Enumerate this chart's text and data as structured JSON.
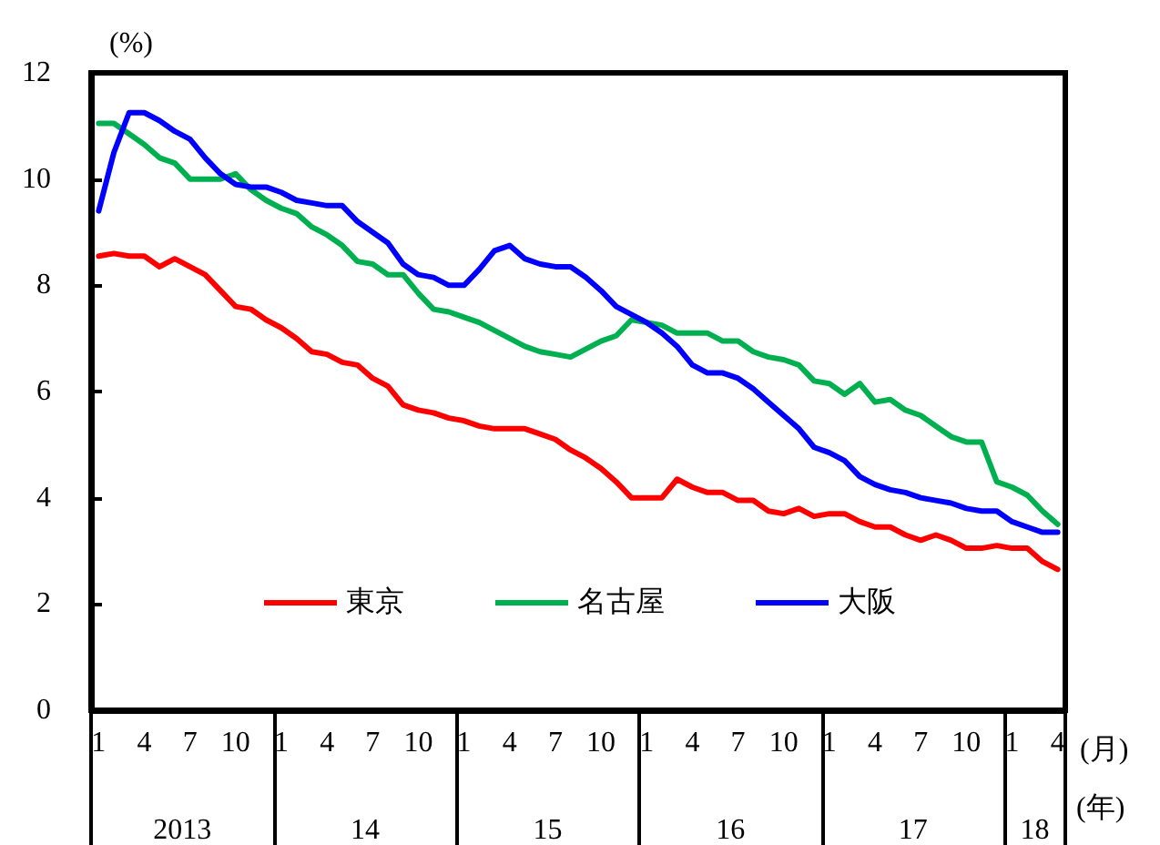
{
  "chart_data": {
    "type": "line",
    "ylabel": "(%)",
    "xlabel": "(月)",
    "categories": [
      "1",
      null,
      null,
      "4",
      null,
      null,
      "7",
      null,
      null,
      "10",
      null,
      null,
      "1",
      null,
      null,
      "4",
      null,
      null,
      "7",
      null,
      null,
      "10",
      null,
      null,
      "1",
      null,
      null,
      "4",
      null,
      null,
      "7",
      null,
      null,
      "10",
      null,
      null,
      "1",
      null,
      null,
      "4",
      null,
      null,
      "7",
      null,
      null,
      "10",
      null,
      null,
      "1",
      null,
      null,
      "4",
      null,
      null,
      "7",
      null,
      null,
      "10",
      null,
      null,
      "1",
      null,
      null,
      "4"
    ],
    "annotations": [
      "2013",
      "14",
      "15",
      "16",
      "17",
      "18",
      "(年)"
    ],
    "ylim": [
      0,
      12
    ],
    "yticks": [
      0,
      2,
      4,
      6,
      8,
      10,
      12
    ],
    "grid": false,
    "legend": "bottom",
    "marker": "none",
    "line_style": "solid",
    "series": [
      {
        "name": "東京",
        "color": "#ff0000",
        "values": [
          8.55,
          8.6,
          8.55,
          8.55,
          8.35,
          8.5,
          8.35,
          8.2,
          7.9,
          7.6,
          7.55,
          7.35,
          7.2,
          7.0,
          6.75,
          6.7,
          6.55,
          6.5,
          6.25,
          6.1,
          5.75,
          5.65,
          5.6,
          5.5,
          5.45,
          5.35,
          5.3,
          5.3,
          5.3,
          5.2,
          5.1,
          4.9,
          4.75,
          4.55,
          4.3,
          4.0,
          4.0,
          4.0,
          4.35,
          4.2,
          4.1,
          4.1,
          3.95,
          3.95,
          3.75,
          3.7,
          3.8,
          3.65,
          3.7,
          3.7,
          3.55,
          3.45,
          3.45,
          3.3,
          3.2,
          3.3,
          3.2,
          3.05,
          3.05,
          3.1,
          3.05,
          3.05,
          2.8,
          2.65
        ]
      },
      {
        "name": "名古屋",
        "color": "#00b050",
        "values": [
          11.05,
          11.05,
          10.85,
          10.65,
          10.4,
          10.3,
          10.0,
          10.0,
          10.0,
          10.1,
          9.8,
          9.6,
          9.45,
          9.35,
          9.1,
          8.95,
          8.75,
          8.45,
          8.4,
          8.2,
          8.2,
          7.85,
          7.55,
          7.5,
          7.4,
          7.3,
          7.15,
          7.0,
          6.85,
          6.75,
          6.7,
          6.65,
          6.8,
          6.95,
          7.05,
          7.35,
          7.3,
          7.25,
          7.1,
          7.1,
          7.1,
          6.95,
          6.95,
          6.75,
          6.65,
          6.6,
          6.5,
          6.2,
          6.15,
          5.95,
          6.15,
          5.8,
          5.85,
          5.65,
          5.55,
          5.35,
          5.15,
          5.05,
          5.05,
          4.3,
          4.2,
          4.05,
          3.75,
          3.5
        ]
      },
      {
        "name": "大阪",
        "color": "#0000ff",
        "values": [
          9.4,
          10.5,
          11.25,
          11.25,
          11.1,
          10.9,
          10.75,
          10.4,
          10.1,
          9.9,
          9.85,
          9.85,
          9.75,
          9.6,
          9.55,
          9.5,
          9.5,
          9.2,
          9.0,
          8.8,
          8.4,
          8.2,
          8.15,
          8.0,
          8.0,
          8.3,
          8.65,
          8.75,
          8.5,
          8.4,
          8.35,
          8.35,
          8.15,
          7.9,
          7.6,
          7.45,
          7.3,
          7.1,
          6.85,
          6.5,
          6.35,
          6.35,
          6.25,
          6.05,
          5.8,
          5.55,
          5.3,
          4.95,
          4.85,
          4.7,
          4.4,
          4.25,
          4.15,
          4.1,
          4.0,
          3.95,
          3.9,
          3.8,
          3.75,
          3.75,
          3.55,
          3.45,
          3.35,
          3.35
        ]
      }
    ]
  }
}
